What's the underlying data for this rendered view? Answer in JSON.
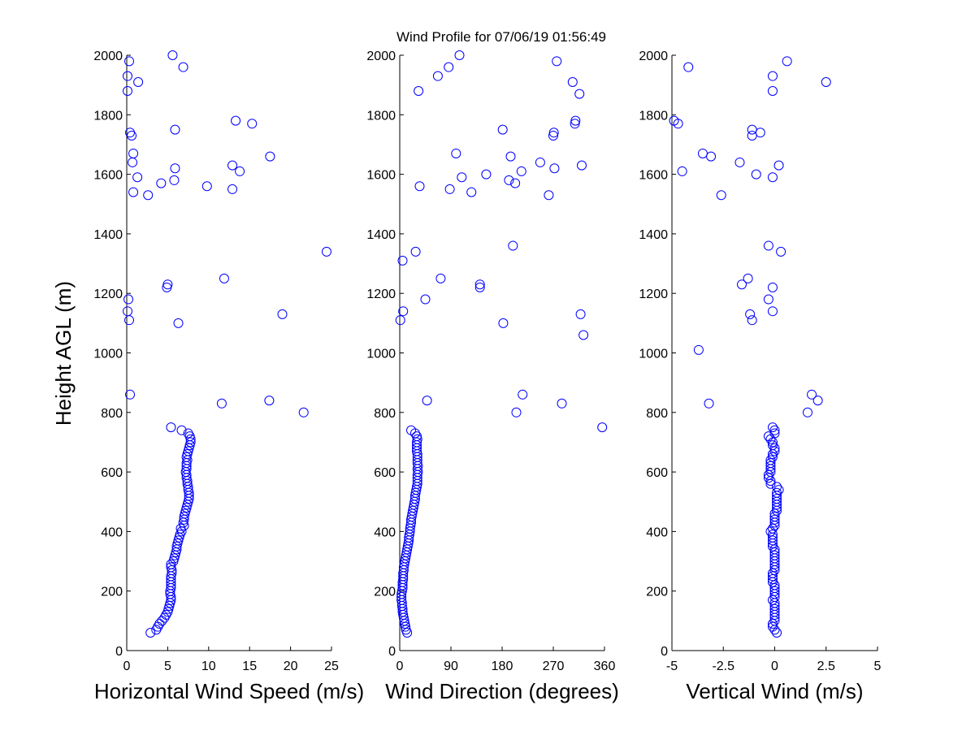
{
  "figure": {
    "title": "Wind Profile for  07/06/19 01:56:49",
    "shared_ylabel": "Height AGL (m)"
  },
  "colors": {
    "marker": "#0000ff",
    "axis": "#000000"
  },
  "chart_data": [
    {
      "type": "scatter",
      "xlabel": "Horizontal Wind Speed (m/s)",
      "ylabel": "Height AGL (m)",
      "xlim": [
        0,
        25
      ],
      "ylim": [
        0,
        2000
      ],
      "x_ticks": [
        0,
        5,
        10,
        15,
        20,
        25
      ],
      "x_tick_labels": [
        "0",
        "5",
        "10",
        "15",
        "20",
        "25"
      ],
      "y_ticks": [
        0,
        200,
        400,
        600,
        800,
        1000,
        1200,
        1400,
        1600,
        1800,
        2000
      ],
      "y_tick_labels": [
        "0",
        "200",
        "400",
        "600",
        "800",
        "1000",
        "1200",
        "1400",
        "1600",
        "1800",
        "2000"
      ],
      "marker": "circle-open",
      "grid": false,
      "points": [
        [
          2.9,
          60
        ],
        [
          3.6,
          70
        ],
        [
          3.8,
          80
        ],
        [
          4.0,
          90
        ],
        [
          4.3,
          100
        ],
        [
          4.6,
          110
        ],
        [
          4.8,
          120
        ],
        [
          5.0,
          130
        ],
        [
          5.1,
          140
        ],
        [
          5.2,
          150
        ],
        [
          5.3,
          160
        ],
        [
          5.4,
          170
        ],
        [
          5.4,
          180
        ],
        [
          5.3,
          190
        ],
        [
          5.3,
          200
        ],
        [
          5.4,
          210
        ],
        [
          5.4,
          220
        ],
        [
          5.4,
          230
        ],
        [
          5.4,
          240
        ],
        [
          5.4,
          250
        ],
        [
          5.5,
          260
        ],
        [
          5.5,
          270
        ],
        [
          5.4,
          280
        ],
        [
          5.4,
          290
        ],
        [
          5.7,
          300
        ],
        [
          5.8,
          310
        ],
        [
          5.9,
          320
        ],
        [
          6.0,
          330
        ],
        [
          6.1,
          340
        ],
        [
          6.1,
          350
        ],
        [
          6.2,
          360
        ],
        [
          6.3,
          370
        ],
        [
          6.4,
          380
        ],
        [
          6.5,
          390
        ],
        [
          6.7,
          400
        ],
        [
          6.6,
          410
        ],
        [
          7.0,
          420
        ],
        [
          6.9,
          430
        ],
        [
          7.0,
          440
        ],
        [
          7.0,
          450
        ],
        [
          7.1,
          460
        ],
        [
          7.2,
          470
        ],
        [
          7.3,
          480
        ],
        [
          7.4,
          490
        ],
        [
          7.5,
          500
        ],
        [
          7.6,
          510
        ],
        [
          7.6,
          520
        ],
        [
          7.6,
          530
        ],
        [
          7.5,
          540
        ],
        [
          7.5,
          550
        ],
        [
          7.4,
          560
        ],
        [
          7.4,
          570
        ],
        [
          7.3,
          580
        ],
        [
          7.3,
          590
        ],
        [
          7.2,
          600
        ],
        [
          7.3,
          610
        ],
        [
          7.3,
          620
        ],
        [
          7.3,
          630
        ],
        [
          7.4,
          640
        ],
        [
          7.3,
          650
        ],
        [
          7.4,
          660
        ],
        [
          7.5,
          670
        ],
        [
          7.6,
          680
        ],
        [
          7.7,
          690
        ],
        [
          7.8,
          700
        ],
        [
          7.8,
          710
        ],
        [
          7.7,
          720
        ],
        [
          7.5,
          730
        ],
        [
          6.7,
          740
        ],
        [
          5.4,
          750
        ],
        [
          21.6,
          800
        ],
        [
          11.6,
          830
        ],
        [
          17.4,
          840
        ],
        [
          0.4,
          860
        ],
        [
          6.3,
          1100
        ],
        [
          0.3,
          1110
        ],
        [
          19.0,
          1130
        ],
        [
          0.1,
          1140
        ],
        [
          0.2,
          1180
        ],
        [
          4.9,
          1220
        ],
        [
          5.0,
          1230
        ],
        [
          11.9,
          1250
        ],
        [
          24.4,
          1340
        ],
        [
          2.6,
          1530
        ],
        [
          0.8,
          1540
        ],
        [
          9.8,
          1560
        ],
        [
          12.9,
          1550
        ],
        [
          4.2,
          1570
        ],
        [
          5.8,
          1580
        ],
        [
          1.3,
          1590
        ],
        [
          13.8,
          1610
        ],
        [
          5.9,
          1620
        ],
        [
          12.9,
          1630
        ],
        [
          0.7,
          1640
        ],
        [
          17.5,
          1660
        ],
        [
          0.8,
          1670
        ],
        [
          0.6,
          1730
        ],
        [
          0.4,
          1740
        ],
        [
          5.9,
          1750
        ],
        [
          15.3,
          1770
        ],
        [
          13.3,
          1780
        ],
        [
          0.1,
          1880
        ],
        [
          1.4,
          1910
        ],
        [
          0.1,
          1930
        ],
        [
          6.9,
          1960
        ],
        [
          0.3,
          1980
        ],
        [
          5.6,
          2000
        ]
      ]
    },
    {
      "type": "scatter",
      "xlabel": "Wind Direction (degrees)",
      "ylabel": "",
      "xlim": [
        0,
        360
      ],
      "ylim": [
        0,
        2000
      ],
      "x_ticks": [
        0,
        90,
        180,
        270,
        360
      ],
      "x_tick_labels": [
        "0",
        "90",
        "180",
        "270",
        "360"
      ],
      "y_ticks": [
        0,
        200,
        400,
        600,
        800,
        1000,
        1200,
        1400,
        1600,
        1800,
        2000
      ],
      "y_tick_labels": [
        "0",
        "200",
        "400",
        "600",
        "800",
        "1000",
        "1200",
        "1400",
        "1600",
        "1800",
        "2000"
      ],
      "marker": "circle-open",
      "grid": false,
      "points": [
        [
          13,
          60
        ],
        [
          11,
          70
        ],
        [
          10,
          80
        ],
        [
          9,
          90
        ],
        [
          8,
          100
        ],
        [
          7,
          110
        ],
        [
          6,
          120
        ],
        [
          5,
          130
        ],
        [
          5,
          140
        ],
        [
          4,
          150
        ],
        [
          4,
          160
        ],
        [
          3,
          170
        ],
        [
          3,
          180
        ],
        [
          3,
          190
        ],
        [
          4,
          200
        ],
        [
          5,
          210
        ],
        [
          5,
          220
        ],
        [
          5,
          230
        ],
        [
          6,
          240
        ],
        [
          6,
          250
        ],
        [
          6,
          260
        ],
        [
          7,
          270
        ],
        [
          7,
          280
        ],
        [
          8,
          290
        ],
        [
          9,
          300
        ],
        [
          10,
          310
        ],
        [
          11,
          320
        ],
        [
          12,
          330
        ],
        [
          13,
          340
        ],
        [
          14,
          350
        ],
        [
          15,
          360
        ],
        [
          16,
          370
        ],
        [
          16,
          380
        ],
        [
          17,
          390
        ],
        [
          18,
          400
        ],
        [
          18,
          410
        ],
        [
          19,
          420
        ],
        [
          20,
          430
        ],
        [
          20,
          440
        ],
        [
          21,
          450
        ],
        [
          22,
          460
        ],
        [
          23,
          470
        ],
        [
          24,
          480
        ],
        [
          25,
          490
        ],
        [
          26,
          500
        ],
        [
          27,
          510
        ],
        [
          27,
          520
        ],
        [
          28,
          530
        ],
        [
          29,
          540
        ],
        [
          30,
          550
        ],
        [
          31,
          560
        ],
        [
          31,
          570
        ],
        [
          31,
          580
        ],
        [
          31,
          590
        ],
        [
          32,
          600
        ],
        [
          31,
          610
        ],
        [
          32,
          620
        ],
        [
          31,
          630
        ],
        [
          31,
          640
        ],
        [
          31,
          650
        ],
        [
          31,
          660
        ],
        [
          30,
          670
        ],
        [
          30,
          680
        ],
        [
          30,
          690
        ],
        [
          30,
          700
        ],
        [
          31,
          710
        ],
        [
          30,
          720
        ],
        [
          27,
          730
        ],
        [
          20,
          740
        ],
        [
          356,
          750
        ],
        [
          205,
          800
        ],
        [
          285,
          830
        ],
        [
          48,
          840
        ],
        [
          216,
          860
        ],
        [
          323,
          1060
        ],
        [
          182,
          1100
        ],
        [
          1,
          1110
        ],
        [
          318,
          1130
        ],
        [
          6,
          1140
        ],
        [
          45,
          1180
        ],
        [
          141,
          1220
        ],
        [
          141,
          1230
        ],
        [
          72,
          1250
        ],
        [
          28,
          1340
        ],
        [
          199,
          1360
        ],
        [
          5,
          1310
        ],
        [
          262,
          1530
        ],
        [
          126,
          1540
        ],
        [
          88,
          1550
        ],
        [
          35,
          1560
        ],
        [
          203,
          1570
        ],
        [
          192,
          1580
        ],
        [
          109,
          1590
        ],
        [
          152,
          1600
        ],
        [
          214,
          1610
        ],
        [
          272,
          1620
        ],
        [
          320,
          1630
        ],
        [
          247,
          1640
        ],
        [
          195,
          1660
        ],
        [
          99,
          1670
        ],
        [
          270,
          1730
        ],
        [
          271,
          1740
        ],
        [
          181,
          1750
        ],
        [
          308,
          1770
        ],
        [
          309,
          1780
        ],
        [
          316,
          1870
        ],
        [
          33,
          1880
        ],
        [
          304,
          1910
        ],
        [
          67,
          1930
        ],
        [
          86,
          1960
        ],
        [
          276,
          1980
        ],
        [
          105,
          2000
        ]
      ]
    },
    {
      "type": "scatter",
      "xlabel": "Vertical Wind (m/s)",
      "ylabel": "",
      "xlim": [
        -5,
        5
      ],
      "ylim": [
        0,
        2000
      ],
      "x_ticks": [
        -5,
        -2.5,
        0,
        2.5,
        5
      ],
      "x_tick_labels": [
        "-5",
        "-2.5",
        "0",
        "2.5",
        "5"
      ],
      "y_ticks": [
        0,
        200,
        400,
        600,
        800,
        1000,
        1200,
        1400,
        1600,
        1800,
        2000
      ],
      "y_tick_labels": [
        "0",
        "200",
        "400",
        "600",
        "800",
        "1000",
        "1200",
        "1400",
        "1600",
        "1800",
        "2000"
      ],
      "marker": "circle-open",
      "grid": false,
      "points": [
        [
          0.1,
          60
        ],
        [
          0.0,
          70
        ],
        [
          -0.1,
          80
        ],
        [
          -0.1,
          90
        ],
        [
          0.0,
          100
        ],
        [
          0.0,
          110
        ],
        [
          0.0,
          120
        ],
        [
          0.0,
          130
        ],
        [
          0.0,
          140
        ],
        [
          0.0,
          150
        ],
        [
          0.0,
          160
        ],
        [
          -0.1,
          170
        ],
        [
          0.0,
          180
        ],
        [
          0.0,
          190
        ],
        [
          0.0,
          200
        ],
        [
          0.0,
          210
        ],
        [
          0.0,
          220
        ],
        [
          -0.1,
          230
        ],
        [
          -0.1,
          240
        ],
        [
          -0.1,
          250
        ],
        [
          -0.1,
          260
        ],
        [
          0.0,
          270
        ],
        [
          0.0,
          280
        ],
        [
          0.0,
          290
        ],
        [
          0.0,
          300
        ],
        [
          0.0,
          310
        ],
        [
          0.0,
          320
        ],
        [
          0.0,
          330
        ],
        [
          0.0,
          340
        ],
        [
          -0.1,
          350
        ],
        [
          -0.1,
          360
        ],
        [
          -0.1,
          370
        ],
        [
          -0.1,
          380
        ],
        [
          -0.1,
          390
        ],
        [
          -0.2,
          400
        ],
        [
          -0.1,
          410
        ],
        [
          0.0,
          420
        ],
        [
          0.0,
          430
        ],
        [
          0.0,
          440
        ],
        [
          0.0,
          450
        ],
        [
          0.0,
          460
        ],
        [
          0.1,
          470
        ],
        [
          0.1,
          480
        ],
        [
          0.1,
          490
        ],
        [
          0.1,
          500
        ],
        [
          0.1,
          510
        ],
        [
          0.1,
          520
        ],
        [
          0.1,
          530
        ],
        [
          0.2,
          540
        ],
        [
          0.1,
          550
        ],
        [
          -0.2,
          560
        ],
        [
          -0.2,
          570
        ],
        [
          -0.3,
          580
        ],
        [
          -0.3,
          590
        ],
        [
          -0.2,
          600
        ],
        [
          -0.2,
          610
        ],
        [
          -0.2,
          620
        ],
        [
          -0.2,
          630
        ],
        [
          -0.2,
          640
        ],
        [
          -0.1,
          650
        ],
        [
          -0.1,
          660
        ],
        [
          0.0,
          670
        ],
        [
          0.0,
          680
        ],
        [
          -0.1,
          690
        ],
        [
          -0.1,
          700
        ],
        [
          -0.2,
          710
        ],
        [
          -0.3,
          720
        ],
        [
          0.0,
          730
        ],
        [
          0.0,
          740
        ],
        [
          -0.1,
          750
        ],
        [
          1.6,
          800
        ],
        [
          -3.2,
          830
        ],
        [
          2.1,
          840
        ],
        [
          1.8,
          860
        ],
        [
          -3.7,
          1010
        ],
        [
          -1.1,
          1110
        ],
        [
          -1.2,
          1130
        ],
        [
          -0.1,
          1140
        ],
        [
          -0.3,
          1180
        ],
        [
          -0.1,
          1220
        ],
        [
          -1.6,
          1230
        ],
        [
          -1.3,
          1250
        ],
        [
          0.3,
          1340
        ],
        [
          -0.3,
          1360
        ],
        [
          -2.6,
          1530
        ],
        [
          -0.1,
          1590
        ],
        [
          -0.9,
          1600
        ],
        [
          -4.5,
          1610
        ],
        [
          0.2,
          1630
        ],
        [
          -1.7,
          1640
        ],
        [
          -3.1,
          1660
        ],
        [
          -3.5,
          1670
        ],
        [
          -1.1,
          1730
        ],
        [
          -0.7,
          1740
        ],
        [
          -1.1,
          1750
        ],
        [
          -4.7,
          1770
        ],
        [
          -4.9,
          1780
        ],
        [
          -0.1,
          1880
        ],
        [
          2.5,
          1910
        ],
        [
          -0.1,
          1930
        ],
        [
          -4.2,
          1960
        ],
        [
          0.6,
          1980
        ]
      ]
    }
  ]
}
